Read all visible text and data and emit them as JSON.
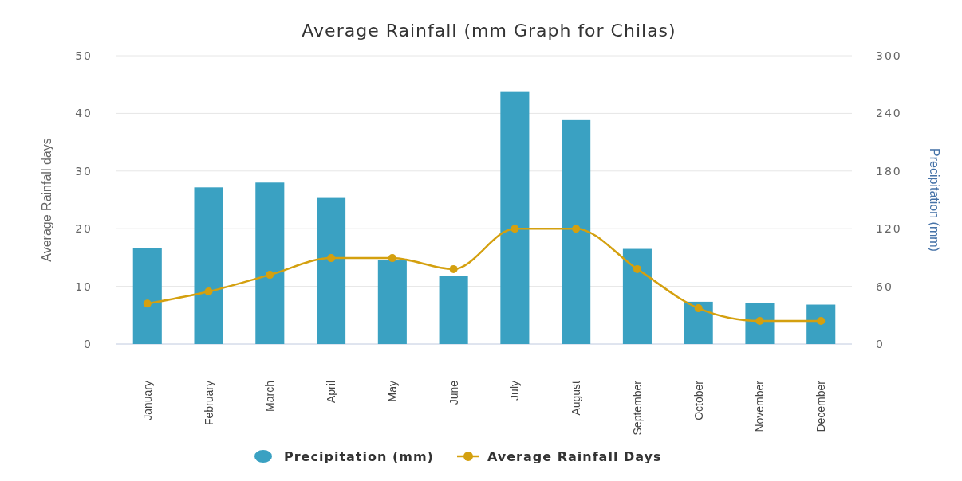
{
  "chart_data": {
    "type": "bar",
    "title": "Average Rainfall (mm Graph for Chilas)",
    "ylabel": "Average Rainfall days",
    "y2label": "Precipitation (mm)",
    "categories": [
      "January",
      "February",
      "March",
      "April",
      "May",
      "June",
      "July",
      "August",
      "September",
      "October",
      "November",
      "December"
    ],
    "series": [
      {
        "name": "Precipitation (mm)",
        "axis": "y2",
        "color": "#3aa1c2",
        "values": [
          100,
          163,
          168,
          152,
          87,
          71,
          263,
          233,
          99,
          44,
          43,
          41
        ]
      },
      {
        "name": "Average Rainfall Days",
        "type": "line",
        "axis": "y",
        "color": "#d4a00f",
        "marker": "circle",
        "values": [
          7,
          9.1,
          12,
          14.9,
          14.9,
          13,
          20,
          20,
          13,
          6.2,
          4,
          4
        ]
      }
    ],
    "ylim": [
      0,
      50
    ],
    "yticks": [
      0,
      10,
      20,
      30,
      40,
      50
    ],
    "y2lim": [
      0,
      300
    ],
    "y2ticks": [
      0,
      60,
      120,
      180,
      240,
      300
    ],
    "grid": "y",
    "legend": "bottom"
  }
}
